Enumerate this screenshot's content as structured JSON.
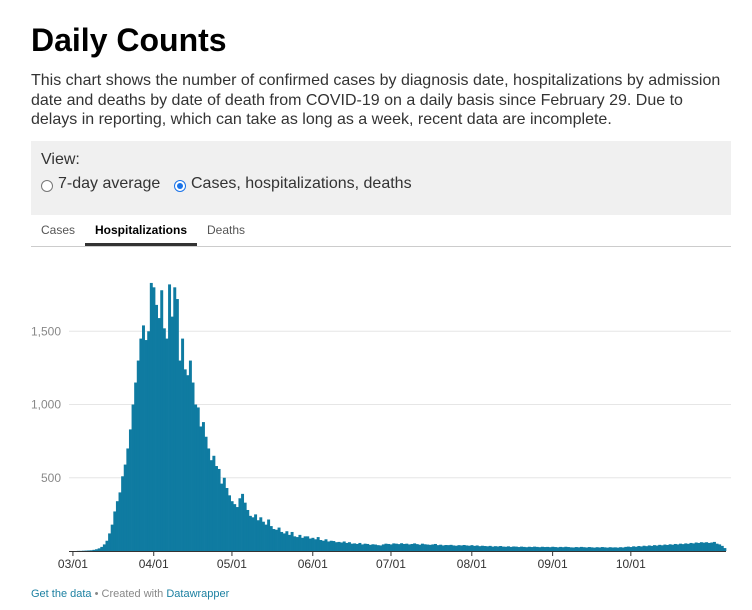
{
  "header": {
    "title": "Daily Counts",
    "description": "This chart shows the number of confirmed cases by diagnosis date, hospitalizations by admission date and deaths by date of death from COVID-19 on a daily basis since February 29. Due to delays in reporting, which can take as long as a week, recent data are incomplete."
  },
  "view": {
    "label": "View:",
    "options": [
      "7-day average",
      "Cases, hospitalizations, deaths"
    ],
    "selected": "Cases, hospitalizations, deaths"
  },
  "tabs": {
    "items": [
      "Cases",
      "Hospitalizations",
      "Deaths"
    ],
    "active": "Hospitalizations"
  },
  "footer": {
    "get_data": "Get the data",
    "separator": " • ",
    "created_with": "Created with ",
    "tool": "Datawrapper"
  },
  "colors": {
    "bars": "#0f7ba1",
    "grid": "#e6e6e6",
    "axis_text": "#888888",
    "link": "#1d81a2"
  },
  "chart_data": {
    "type": "bar",
    "title": "",
    "xlabel": "",
    "ylabel": "",
    "ylim": [
      0,
      1850
    ],
    "yticks": [
      500,
      1000,
      1500
    ],
    "ytick_labels": [
      "500",
      "1,000",
      "1,500"
    ],
    "xticks": [
      "03/01",
      "04/01",
      "05/01",
      "06/01",
      "07/01",
      "08/01",
      "09/01",
      "10/01"
    ],
    "grid": true,
    "series": [
      {
        "start_date": "2020-02-29",
        "values": [
          0,
          0,
          0,
          1,
          1,
          2,
          3,
          4,
          5,
          8,
          12,
          18,
          28,
          45,
          70,
          120,
          180,
          270,
          340,
          400,
          510,
          590,
          700,
          830,
          1000,
          1150,
          1300,
          1450,
          1540,
          1440,
          1500,
          1830,
          1800,
          1680,
          1590,
          1780,
          1520,
          1450,
          1820,
          1600,
          1800,
          1720,
          1300,
          1450,
          1240,
          1200,
          1300,
          1150,
          1000,
          980,
          850,
          880,
          780,
          700,
          620,
          650,
          580,
          560,
          460,
          500,
          430,
          380,
          340,
          320,
          300,
          360,
          390,
          330,
          280,
          240,
          230,
          250,
          210,
          230,
          200,
          180,
          215,
          170,
          150,
          145,
          160,
          130,
          120,
          135,
          110,
          130,
          100,
          95,
          110,
          90,
          100,
          100,
          85,
          90,
          80,
          95,
          75,
          70,
          80,
          65,
          70,
          68,
          60,
          62,
          58,
          65,
          55,
          60,
          50,
          52,
          48,
          55,
          45,
          50,
          48,
          42,
          46,
          44,
          40,
          38,
          45,
          50,
          48,
          45,
          52,
          50,
          47,
          53,
          48,
          50,
          45,
          48,
          52,
          47,
          43,
          50,
          46,
          44,
          42,
          45,
          48,
          40,
          43,
          38,
          41,
          40,
          42,
          38,
          36,
          40,
          38,
          41,
          38,
          36,
          40,
          35,
          38,
          33,
          36,
          34,
          32,
          35,
          30,
          33,
          31,
          34,
          30,
          29,
          32,
          28,
          31,
          30,
          27,
          30,
          28,
          26,
          29,
          27,
          30,
          28,
          26,
          29,
          27,
          28,
          26,
          29,
          27,
          25,
          28,
          26,
          29,
          27,
          25,
          24,
          27,
          25,
          28,
          26,
          24,
          27,
          25,
          23,
          26,
          24,
          27,
          25,
          23,
          26,
          24,
          25,
          23,
          26,
          24,
          28,
          30,
          27,
          32,
          29,
          34,
          31,
          36,
          33,
          38,
          35,
          40,
          37,
          42,
          39,
          44,
          41,
          46,
          43,
          48,
          45,
          50,
          47,
          52,
          49,
          55,
          52,
          58,
          55,
          60,
          57,
          60,
          55,
          58,
          62,
          50,
          45,
          35,
          20
        ]
      }
    ]
  }
}
